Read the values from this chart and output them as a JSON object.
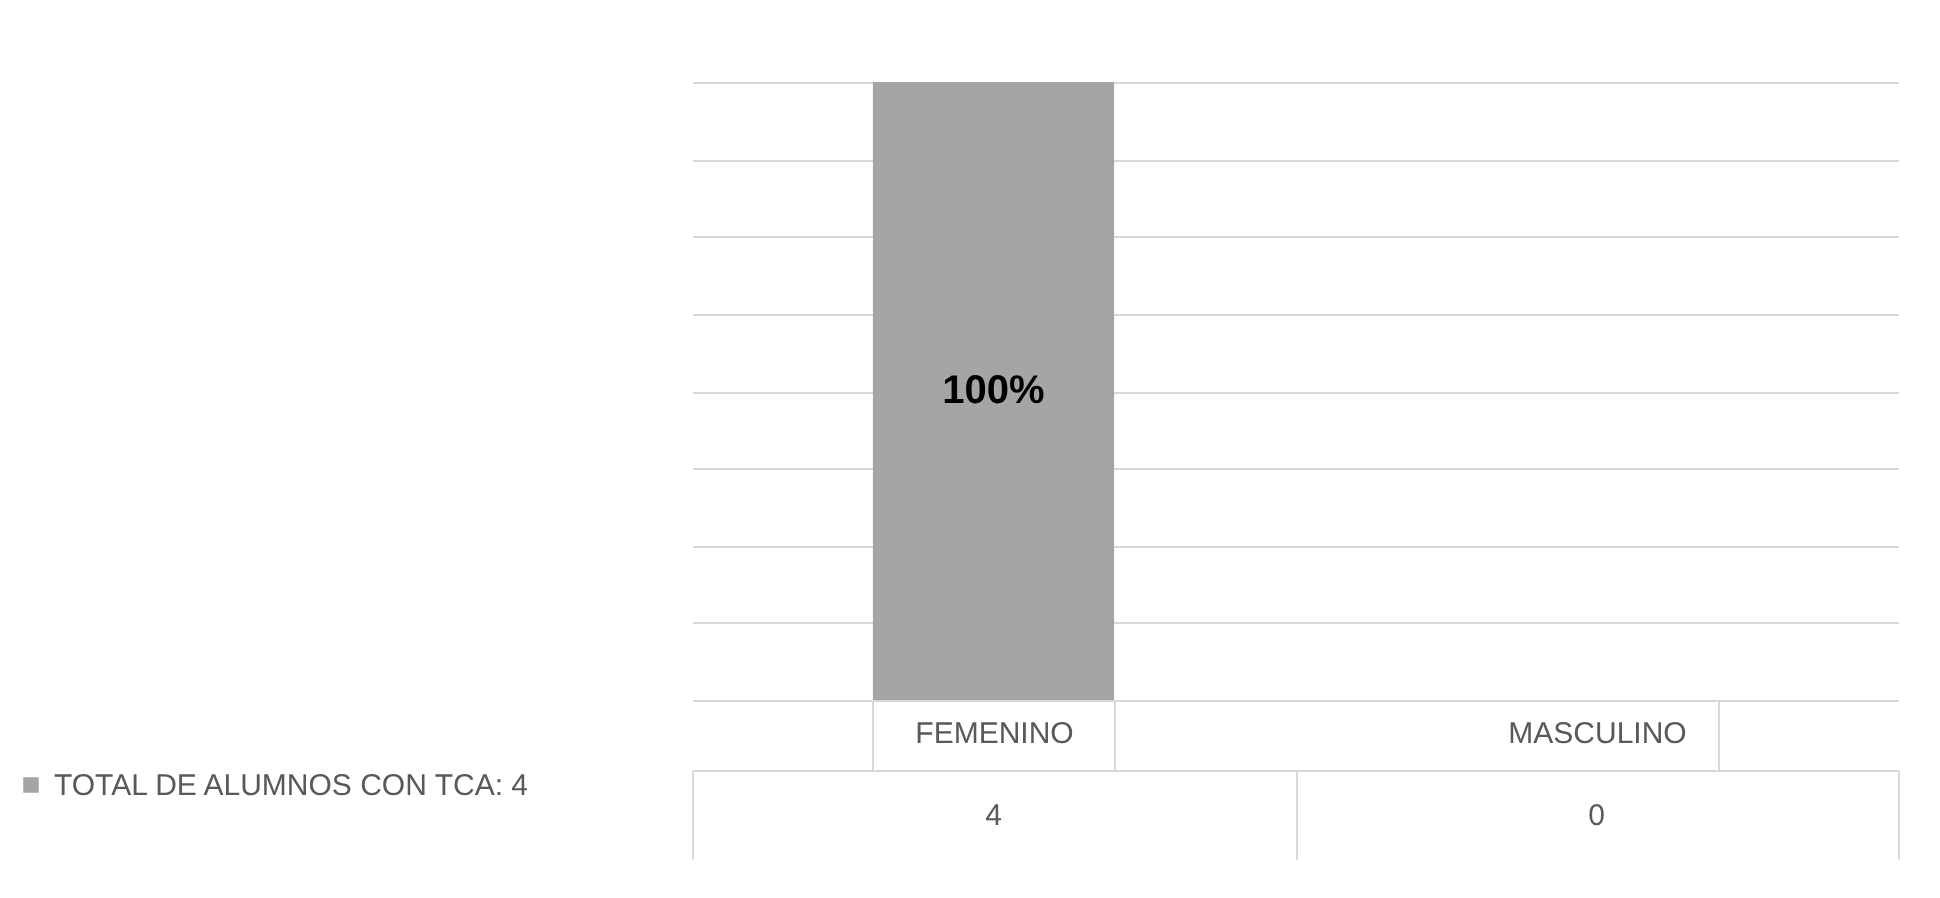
{
  "chart_data": {
    "type": "bar",
    "categories": [
      "FEMENINO",
      "MASCULINO"
    ],
    "series": [
      {
        "name": "TOTAL DE ALUMNOS CON TCA: 4",
        "color": "#a5a5a5",
        "values": [
          4,
          0
        ],
        "value_labels": [
          "4",
          "0"
        ]
      }
    ],
    "grid": "y",
    "tick_labels": "x",
    "legend": "bottom left",
    "annotations": [
      "100%"
    ]
  }
}
